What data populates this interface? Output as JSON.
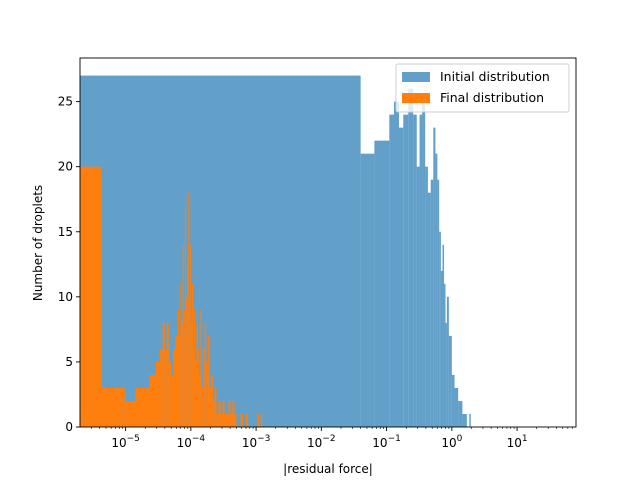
{
  "chart_data": {
    "type": "bar",
    "title": "",
    "xlabel": "|residual force|",
    "ylabel": "Number of droplets",
    "xscale": "log",
    "xlim": [
      2e-06,
      80
    ],
    "ylim": [
      0,
      28.35
    ],
    "x_ticks": [
      {
        "value": 1e-05,
        "label": "10",
        "exp": "−5"
      },
      {
        "value": 0.0001,
        "label": "10",
        "exp": "−4"
      },
      {
        "value": 0.001,
        "label": "10",
        "exp": "−3"
      },
      {
        "value": 0.01,
        "label": "10",
        "exp": "−2"
      },
      {
        "value": 0.1,
        "label": "10",
        "exp": "−1"
      },
      {
        "value": 1,
        "label": "10",
        "exp": "0"
      },
      {
        "value": 10,
        "label": "10",
        "exp": "1"
      }
    ],
    "y_ticks": [
      {
        "value": 0,
        "label": "0"
      },
      {
        "value": 5,
        "label": "5"
      },
      {
        "value": 10,
        "label": "10"
      },
      {
        "value": 15,
        "label": "15"
      },
      {
        "value": 20,
        "label": "20"
      },
      {
        "value": 25,
        "label": "25"
      }
    ],
    "grid": false,
    "legend": {
      "position": "upper-right",
      "entries": [
        {
          "name": "Initial distribution",
          "color": "#1f77b4",
          "alpha": 0.7
        },
        {
          "name": "Final distribution",
          "color": "#ff7f0e",
          "alpha": 1.0
        }
      ]
    },
    "series": [
      {
        "name": "Initial distribution",
        "color": "#1f77b4",
        "alpha": 0.7,
        "bins": [
          {
            "x0": 2e-06,
            "x1": 0.04,
            "count": 27
          },
          {
            "x0": 0.04,
            "x1": 0.065,
            "count": 21
          },
          {
            "x0": 0.065,
            "x1": 0.11,
            "count": 22
          },
          {
            "x0": 0.11,
            "x1": 0.13,
            "count": 24
          },
          {
            "x0": 0.13,
            "x1": 0.155,
            "count": 25
          },
          {
            "x0": 0.155,
            "x1": 0.18,
            "count": 23
          },
          {
            "x0": 0.18,
            "x1": 0.215,
            "count": 24
          },
          {
            "x0": 0.215,
            "x1": 0.255,
            "count": 26
          },
          {
            "x0": 0.255,
            "x1": 0.29,
            "count": 24
          },
          {
            "x0": 0.29,
            "x1": 0.32,
            "count": 20
          },
          {
            "x0": 0.32,
            "x1": 0.35,
            "count": 24
          },
          {
            "x0": 0.35,
            "x1": 0.39,
            "count": 25
          },
          {
            "x0": 0.39,
            "x1": 0.43,
            "count": 20
          },
          {
            "x0": 0.43,
            "x1": 0.475,
            "count": 18
          },
          {
            "x0": 0.475,
            "x1": 0.52,
            "count": 19
          },
          {
            "x0": 0.52,
            "x1": 0.56,
            "count": 23
          },
          {
            "x0": 0.56,
            "x1": 0.6,
            "count": 21
          },
          {
            "x0": 0.6,
            "x1": 0.64,
            "count": 19
          },
          {
            "x0": 0.64,
            "x1": 0.68,
            "count": 15
          },
          {
            "x0": 0.68,
            "x1": 0.72,
            "count": 12
          },
          {
            "x0": 0.72,
            "x1": 0.76,
            "count": 14
          },
          {
            "x0": 0.76,
            "x1": 0.8,
            "count": 11
          },
          {
            "x0": 0.8,
            "x1": 0.84,
            "count": 8
          },
          {
            "x0": 0.84,
            "x1": 0.9,
            "count": 10
          },
          {
            "x0": 0.9,
            "x1": 1.0,
            "count": 7
          },
          {
            "x0": 1.0,
            "x1": 1.1,
            "count": 4
          },
          {
            "x0": 1.1,
            "x1": 1.25,
            "count": 3
          },
          {
            "x0": 1.25,
            "x1": 1.45,
            "count": 2
          },
          {
            "x0": 1.45,
            "x1": 1.7,
            "count": 1
          },
          {
            "x0": 1.85,
            "x1": 1.95,
            "count": 1
          }
        ]
      },
      {
        "name": "Final distribution",
        "color": "#ff7f0e",
        "alpha": 1.0,
        "bins": [
          {
            "x0": 2e-06,
            "x1": 4.3e-06,
            "count": 20
          },
          {
            "x0": 4.3e-06,
            "x1": 9.7e-06,
            "count": 3
          },
          {
            "x0": 9.7e-06,
            "x1": 1.41e-05,
            "count": 2
          },
          {
            "x0": 1.41e-05,
            "x1": 2.3e-05,
            "count": 3
          },
          {
            "x0": 2.3e-05,
            "x1": 2.9e-05,
            "count": 4
          },
          {
            "x0": 2.9e-05,
            "x1": 3.3e-05,
            "count": 5
          },
          {
            "x0": 3.3e-05,
            "x1": 3.7e-05,
            "count": 6
          },
          {
            "x0": 3.7e-05,
            "x1": 4e-05,
            "count": 8
          },
          {
            "x0": 4e-05,
            "x1": 4.3e-05,
            "count": 6
          },
          {
            "x0": 4.3e-05,
            "x1": 4.6e-05,
            "count": 8
          },
          {
            "x0": 4.6e-05,
            "x1": 5e-05,
            "count": 5
          },
          {
            "x0": 5e-05,
            "x1": 5.4e-05,
            "count": 4
          },
          {
            "x0": 5.4e-05,
            "x1": 5.8e-05,
            "count": 6
          },
          {
            "x0": 5.8e-05,
            "x1": 6.3e-05,
            "count": 7
          },
          {
            "x0": 6.3e-05,
            "x1": 6.6e-05,
            "count": 9
          },
          {
            "x0": 6.6e-05,
            "x1": 6.9e-05,
            "count": 7
          },
          {
            "x0": 6.9e-05,
            "x1": 7.2e-05,
            "count": 11
          },
          {
            "x0": 7.2e-05,
            "x1": 7.5e-05,
            "count": 8
          },
          {
            "x0": 7.5e-05,
            "x1": 7.8e-05,
            "count": 14
          },
          {
            "x0": 7.8e-05,
            "x1": 8.1e-05,
            "count": 9
          },
          {
            "x0": 8.1e-05,
            "x1": 8.4e-05,
            "count": 17
          },
          {
            "x0": 8.4e-05,
            "x1": 8.7e-05,
            "count": 10
          },
          {
            "x0": 8.7e-05,
            "x1": 9e-05,
            "count": 13
          },
          {
            "x0": 9e-05,
            "x1": 9.3e-05,
            "count": 18
          },
          {
            "x0": 9.3e-05,
            "x1": 9.6e-05,
            "count": 9
          },
          {
            "x0": 9.6e-05,
            "x1": 0.0001,
            "count": 14
          },
          {
            "x0": 0.0001,
            "x1": 0.000104,
            "count": 8
          },
          {
            "x0": 0.000104,
            "x1": 0.000108,
            "count": 11
          },
          {
            "x0": 0.000108,
            "x1": 0.000112,
            "count": 6
          },
          {
            "x0": 0.000112,
            "x1": 0.000117,
            "count": 9
          },
          {
            "x0": 0.000117,
            "x1": 0.000122,
            "count": 5
          },
          {
            "x0": 0.000122,
            "x1": 0.000128,
            "count": 8
          },
          {
            "x0": 0.000128,
            "x1": 0.000134,
            "count": 6
          },
          {
            "x0": 0.000134,
            "x1": 0.00014,
            "count": 4
          },
          {
            "x0": 0.00014,
            "x1": 0.000147,
            "count": 9
          },
          {
            "x0": 0.000147,
            "x1": 0.000155,
            "count": 3
          },
          {
            "x0": 0.000155,
            "x1": 0.000163,
            "count": 6
          },
          {
            "x0": 0.000163,
            "x1": 0.000172,
            "count": 8
          },
          {
            "x0": 0.000172,
            "x1": 0.000182,
            "count": 5
          },
          {
            "x0": 0.000182,
            "x1": 0.000193,
            "count": 7
          },
          {
            "x0": 0.000193,
            "x1": 0.000205,
            "count": 3
          },
          {
            "x0": 0.000205,
            "x1": 0.000218,
            "count": 4
          },
          {
            "x0": 0.000218,
            "x1": 0.000232,
            "count": 2
          },
          {
            "x0": 0.000232,
            "x1": 0.000248,
            "count": 3
          },
          {
            "x0": 0.000248,
            "x1": 0.000265,
            "count": 1
          },
          {
            "x0": 0.000265,
            "x1": 0.000285,
            "count": 2
          },
          {
            "x0": 0.000285,
            "x1": 0.000305,
            "count": 1
          },
          {
            "x0": 0.000305,
            "x1": 0.000328,
            "count": 2
          },
          {
            "x0": 0.000328,
            "x1": 0.000352,
            "count": 1
          },
          {
            "x0": 0.000352,
            "x1": 0.000378,
            "count": 1
          },
          {
            "x0": 0.000378,
            "x1": 0.000406,
            "count": 2
          },
          {
            "x0": 0.000406,
            "x1": 0.000436,
            "count": 1
          },
          {
            "x0": 0.000436,
            "x1": 0.000468,
            "count": 2
          },
          {
            "x0": 0.000468,
            "x1": 0.0005,
            "count": 1
          },
          {
            "x0": 0.00058,
            "x1": 0.00063,
            "count": 1
          },
          {
            "x0": 0.0007,
            "x1": 0.00075,
            "count": 1
          },
          {
            "x0": 0.00105,
            "x1": 0.00112,
            "count": 1
          },
          {
            "x0": 0.00118,
            "x1": 0.00124,
            "count": 1
          }
        ]
      }
    ]
  }
}
